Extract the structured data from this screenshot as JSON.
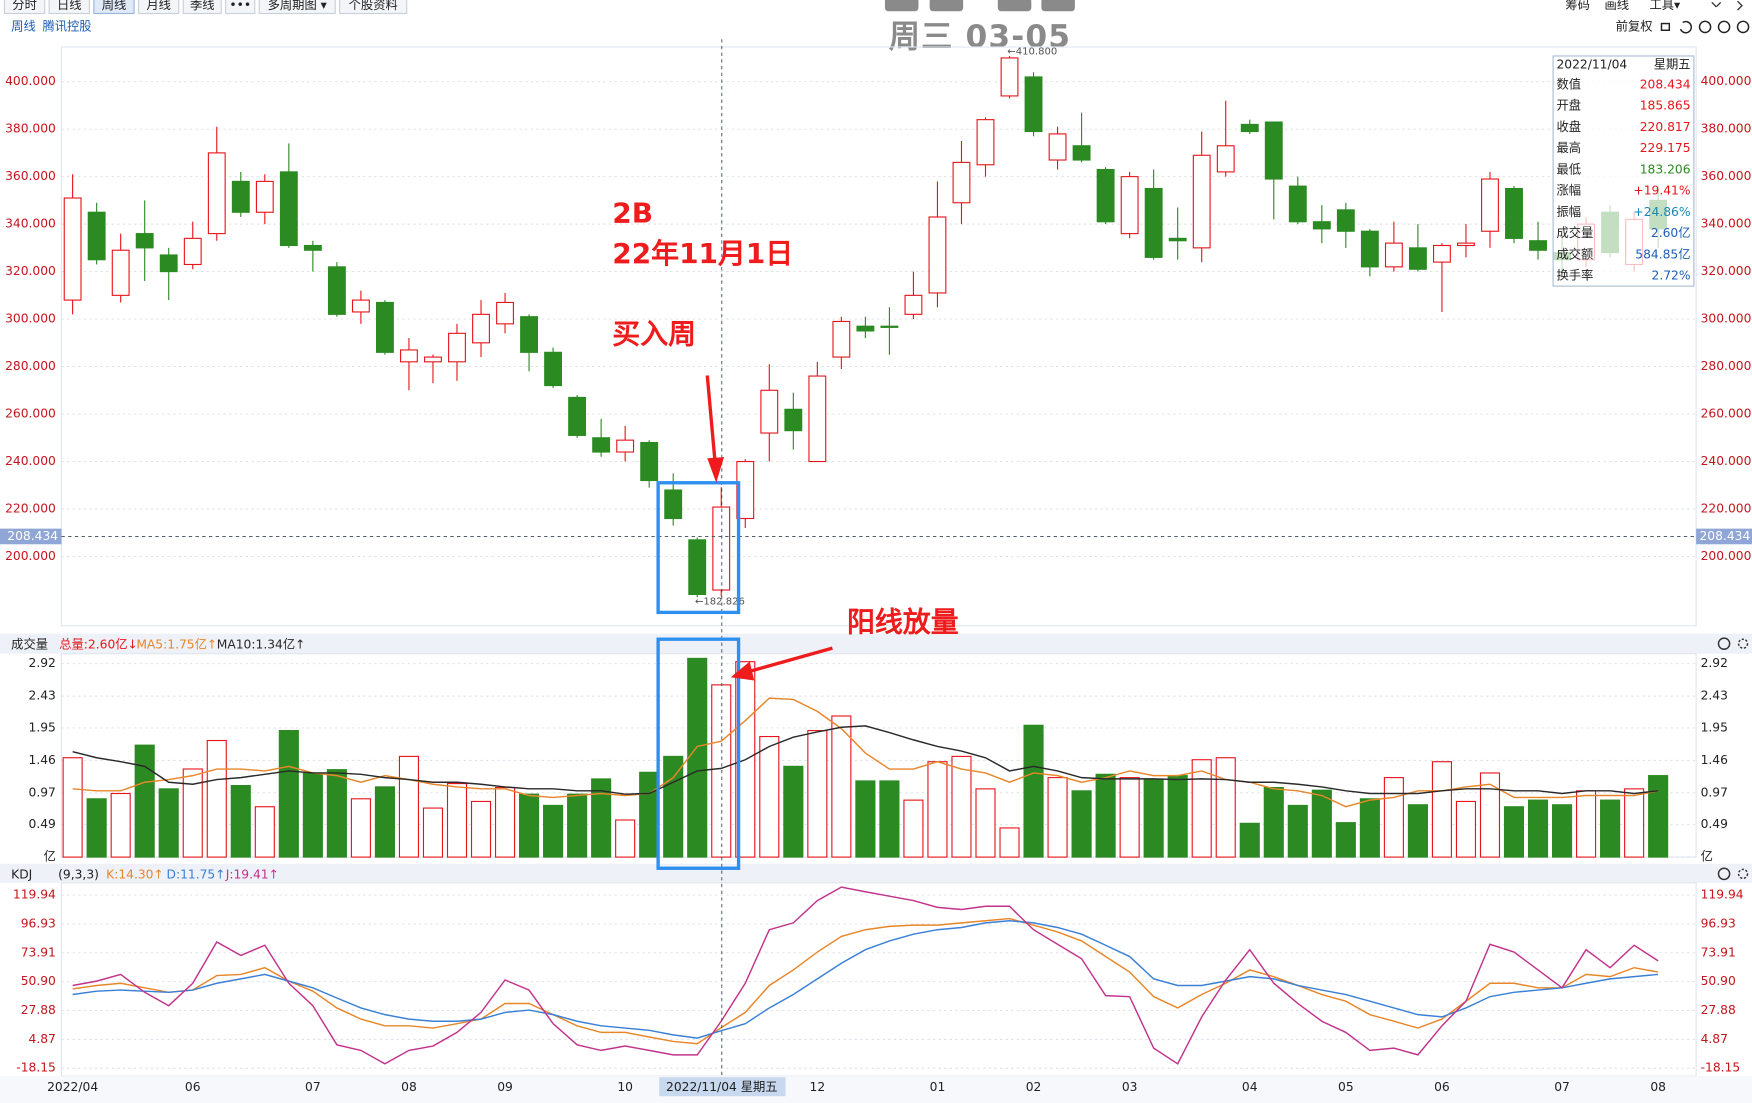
{
  "toolbar": {
    "tabs": [
      "分时",
      "日线",
      "周线",
      "月线",
      "季线",
      "•••",
      "多周期图 ▾",
      "个股资料"
    ],
    "right": [
      "筹码",
      "画线",
      "工具▾"
    ],
    "adjust": "前复权"
  },
  "header": {
    "period": "周线",
    "stock": "腾讯控股",
    "clock": "周三 03-05"
  },
  "annotations": {
    "label_2b": "2B",
    "date": "22年11月1日",
    "buy": "买入周",
    "volume_note": "阳线放量"
  },
  "cursor_label": "2022/11/04 星期五",
  "info_panel": {
    "date": "2022/11/04",
    "weekday": "星期五",
    "rows": [
      [
        "数值",
        "208.434"
      ],
      [
        "开盘",
        "185.865"
      ],
      [
        "收盘",
        "220.817"
      ],
      [
        "最高",
        "229.175"
      ],
      [
        "最低",
        "183.206"
      ],
      [
        "涨幅",
        "+19.41%"
      ],
      [
        "振幅",
        "+24.86%"
      ],
      [
        "成交量",
        "2.60亿"
      ],
      [
        "成交额",
        "584.85亿"
      ],
      [
        "换手率",
        "2.72%"
      ]
    ]
  },
  "chart_data": [
    {
      "type": "candlestick",
      "up_color": "#e8141c",
      "down_color": "#2b8a22",
      "open": [
        308,
        345,
        310,
        336,
        327,
        323,
        336,
        358,
        345,
        362,
        331,
        322,
        303,
        307,
        282,
        282,
        282,
        290,
        298,
        301,
        286,
        267,
        250,
        244,
        248,
        228,
        207,
        185.865,
        216,
        252,
        262,
        240,
        284,
        297,
        297,
        302,
        311,
        349,
        365,
        394,
        402,
        367,
        373,
        363,
        336,
        355,
        334,
        330,
        362,
        382,
        383,
        356,
        341,
        346,
        337,
        322,
        330,
        324,
        331,
        337,
        355,
        333,
        328,
        325,
        345,
        323,
        350
      ],
      "high": [
        361,
        349,
        336,
        350,
        330,
        341,
        381,
        362,
        361,
        374,
        333,
        324,
        312,
        308,
        292,
        285,
        298,
        308,
        311,
        302,
        288,
        268,
        258,
        255,
        249,
        235,
        208,
        229.175,
        241,
        281,
        269,
        282,
        301,
        301,
        305,
        320,
        358,
        375,
        385,
        410.8,
        404,
        381,
        387,
        364,
        362,
        363,
        347,
        379,
        392,
        384,
        383,
        360,
        348,
        349,
        338,
        341,
        340,
        332,
        340,
        362,
        356,
        341,
        336,
        343,
        348,
        345,
        356
      ],
      "low": [
        302,
        323,
        307,
        316,
        308,
        321,
        333,
        343,
        340,
        330,
        320,
        301,
        298,
        285,
        270,
        273,
        274,
        284,
        294,
        278,
        271,
        250,
        242,
        240,
        229,
        213,
        182.826,
        183.206,
        212,
        240,
        245,
        240,
        279,
        292,
        285,
        300,
        305,
        340,
        360,
        393,
        377,
        363,
        366,
        340,
        334,
        325,
        325,
        324,
        360,
        378,
        342,
        340,
        332,
        330,
        318,
        320,
        320,
        303,
        326,
        330,
        332,
        325,
        320,
        322,
        326,
        320,
        330
      ],
      "close": [
        351,
        325,
        329,
        330,
        320,
        334,
        370,
        345,
        358,
        331,
        329,
        302,
        308,
        286,
        287,
        284,
        294,
        302,
        307,
        286,
        272,
        251,
        244,
        249,
        232,
        216,
        184,
        220.817,
        240,
        270,
        253,
        276,
        299,
        295,
        296.5,
        310,
        343,
        366,
        384,
        410,
        379,
        378,
        367,
        341,
        360,
        326,
        333,
        369,
        373,
        379,
        359,
        341,
        338,
        337,
        322,
        332,
        321,
        331,
        332,
        359,
        334,
        329,
        325,
        340,
        328,
        342,
        338
      ],
      "ylim": [
        170.8,
        414.6
      ],
      "yticks": [
        {
          "value": 200,
          "label": "200.000"
        },
        {
          "value": 220,
          "label": "220.000"
        },
        {
          "value": 240,
          "label": "240.000"
        },
        {
          "value": 260,
          "label": "260.000"
        },
        {
          "value": 280,
          "label": "280.000"
        },
        {
          "value": 300,
          "label": "300.000"
        },
        {
          "value": 320,
          "label": "320.000"
        },
        {
          "value": 340,
          "label": "340.000"
        },
        {
          "value": 360,
          "label": "360.000"
        },
        {
          "value": 380,
          "label": "380.000"
        },
        {
          "value": 400,
          "label": "400.000"
        }
      ],
      "grid": true,
      "crosshair": 208.434,
      "price_labels": [
        "←410.800",
        "←182.826"
      ]
    },
    {
      "type": "bar",
      "title": "成交量",
      "total_label": "总量:2.60亿↓",
      "values": [
        1.5,
        0.88,
        0.96,
        1.69,
        1.03,
        1.33,
        1.76,
        1.08,
        0.76,
        1.91,
        1.27,
        1.32,
        0.88,
        1.06,
        1.52,
        0.74,
        1.11,
        0.84,
        1.05,
        0.95,
        0.78,
        0.95,
        1.18,
        0.56,
        1.28,
        1.52,
        3.0,
        2.6,
        2.95,
        1.82,
        1.37,
        1.91,
        2.13,
        1.15,
        1.15,
        0.86,
        1.44,
        1.52,
        1.03,
        0.44,
        1.99,
        1.2,
        1.0,
        1.25,
        1.2,
        1.17,
        1.23,
        1.47,
        1.5,
        0.51,
        1.05,
        0.78,
        1.01,
        0.52,
        0.88,
        1.2,
        0.79,
        1.44,
        0.84,
        1.27,
        0.76,
        0.86,
        0.79,
        1.0,
        0.86,
        1.03,
        1.23
      ],
      "series": [
        {
          "name": "MA5:1.75亿↑",
          "color": "#e8862a",
          "values": [
            1.03,
            1.0,
            1.0,
            1.13,
            1.17,
            1.23,
            1.33,
            1.33,
            1.3,
            1.37,
            1.27,
            1.23,
            1.13,
            1.23,
            1.17,
            1.1,
            1.06,
            1.03,
            1.03,
            0.93,
            0.9,
            0.93,
            0.96,
            0.93,
            0.96,
            1.2,
            1.67,
            1.75,
            2.06,
            2.4,
            2.38,
            2.2,
            1.94,
            1.57,
            1.33,
            1.33,
            1.44,
            1.33,
            1.27,
            1.13,
            1.27,
            1.23,
            1.13,
            1.2,
            1.3,
            1.23,
            1.23,
            1.3,
            1.17,
            1.13,
            1.03,
            1.0,
            0.93,
            0.76,
            0.86,
            0.9,
            1.0,
            1.0,
            1.06,
            1.1,
            0.9,
            0.9,
            0.9,
            0.93,
            0.93,
            0.93,
            1.0
          ]
        },
        {
          "name": "MA10:1.34亿↑",
          "color": "#2a2a2a",
          "values": [
            1.59,
            1.5,
            1.44,
            1.37,
            1.13,
            1.1,
            1.17,
            1.2,
            1.25,
            1.3,
            1.27,
            1.27,
            1.25,
            1.2,
            1.17,
            1.13,
            1.13,
            1.1,
            1.06,
            1.03,
            1.03,
            1.0,
            1.0,
            0.95,
            0.96,
            1.13,
            1.3,
            1.34,
            1.47,
            1.67,
            1.81,
            1.89,
            1.96,
            1.98,
            1.88,
            1.77,
            1.67,
            1.6,
            1.5,
            1.3,
            1.37,
            1.3,
            1.2,
            1.18,
            1.18,
            1.18,
            1.17,
            1.18,
            1.17,
            1.13,
            1.13,
            1.1,
            1.06,
            1.0,
            0.96,
            0.96,
            0.96,
            1.0,
            1.03,
            1.03,
            1.0,
            1.0,
            0.96,
            1.0,
            1.0,
            0.96,
            1.0
          ]
        }
      ],
      "ylim": [
        0,
        3.07
      ],
      "yticks": [
        {
          "value": 0,
          "label": "亿"
        },
        0.49,
        0.97,
        1.46,
        1.95,
        2.43,
        2.92
      ]
    },
    {
      "type": "line",
      "title": "KDJ",
      "params": "(9,3,3)",
      "categories": [
        "2022/04",
        null,
        null,
        null,
        null,
        "06",
        null,
        null,
        null,
        null,
        "07",
        null,
        null,
        null,
        "08",
        null,
        null,
        null,
        "09",
        null,
        null,
        null,
        null,
        "10",
        null,
        null,
        null,
        null,
        null,
        null,
        null,
        "12",
        null,
        null,
        null,
        null,
        "01",
        null,
        null,
        null,
        "02",
        null,
        null,
        null,
        "03",
        null,
        null,
        null,
        null,
        "04",
        null,
        null,
        null,
        "05",
        null,
        null,
        null,
        "06",
        null,
        null,
        null,
        null,
        "07",
        null,
        null,
        null,
        "08"
      ],
      "series": [
        {
          "name": "K:14.30↑",
          "color": "#e8862a",
          "values": [
            45.1,
            47.8,
            49.6,
            46.0,
            42.4,
            44.2,
            55.8,
            56.7,
            62.0,
            51.3,
            43.3,
            29.9,
            21.0,
            15.7,
            15.7,
            13.9,
            17.4,
            21.0,
            33.5,
            33.5,
            24.6,
            15.7,
            10.4,
            10.4,
            6.8,
            3.2,
            1.4,
            14.3,
            26.4,
            47.8,
            60.2,
            74.5,
            86.9,
            92.3,
            95.0,
            95.9,
            95.9,
            97.7,
            99.4,
            101.2,
            95.9,
            90.5,
            83.4,
            70.9,
            58.5,
            38.9,
            29.9,
            40.6,
            49.6,
            60.2,
            54.9,
            47.8,
            40.6,
            35.3,
            24.6,
            19.3,
            13.9,
            21.0,
            35.3,
            49.6,
            49.6,
            46.0,
            46.0,
            56.7,
            54.9,
            62.0,
            58.5
          ]
        },
        {
          "name": "D:11.75↑",
          "color": "#3a80d6",
          "values": [
            40.6,
            43.3,
            44.2,
            43.3,
            42.4,
            44.2,
            49.6,
            53.1,
            56.7,
            51.3,
            46.0,
            37.9,
            29.9,
            24.6,
            21.0,
            19.3,
            19.3,
            21.0,
            26.4,
            28.2,
            24.6,
            19.3,
            15.7,
            13.9,
            12.1,
            8.5,
            5.9,
            11.75,
            17.4,
            29.9,
            40.6,
            53.1,
            65.6,
            76.3,
            83.4,
            88.7,
            92.3,
            94.1,
            97.7,
            99.4,
            97.7,
            94.1,
            88.7,
            79.9,
            70.9,
            53.1,
            47.8,
            47.8,
            51.3,
            54.9,
            53.1,
            47.8,
            44.2,
            40.6,
            35.3,
            29.9,
            24.6,
            22.8,
            29.9,
            38.9,
            42.4,
            44.2,
            46.0,
            49.6,
            53.1,
            54.9,
            56.7
          ]
        },
        {
          "name": "J:19.41↑",
          "color": "#c2338c",
          "values": [
            47.8,
            51.3,
            56.7,
            42.4,
            31.7,
            49.6,
            82.5,
            71.8,
            79.9,
            49.6,
            31.7,
            0.5,
            -3.9,
            -14.6,
            -3.9,
            -0.4,
            10.4,
            26.4,
            52.2,
            44.2,
            17.4,
            0.5,
            -3.9,
            -0.4,
            -3.9,
            -7.5,
            -7.5,
            19.41,
            49.6,
            92.3,
            97.7,
            115.5,
            126.2,
            122.6,
            119.0,
            115.5,
            110.1,
            108.4,
            111.0,
            111.0,
            92.3,
            80.7,
            69.1,
            39.7,
            38.9,
            -2.1,
            -14.6,
            22.8,
            52.2,
            76.3,
            49.6,
            33.5,
            19.3,
            10.4,
            -3.9,
            -2.1,
            -7.5,
            15.7,
            35.3,
            80.7,
            74.5,
            60.2,
            46.0,
            76.3,
            62.0,
            79.9,
            67.4
          ]
        }
      ],
      "ylim": [
        -24.4,
        129.7
      ],
      "yticks": [
        -18.15,
        4.87,
        27.88,
        {
          "value": 50.9,
          "label": "50.90"
        },
        73.91,
        96.93,
        119.94
      ]
    }
  ]
}
